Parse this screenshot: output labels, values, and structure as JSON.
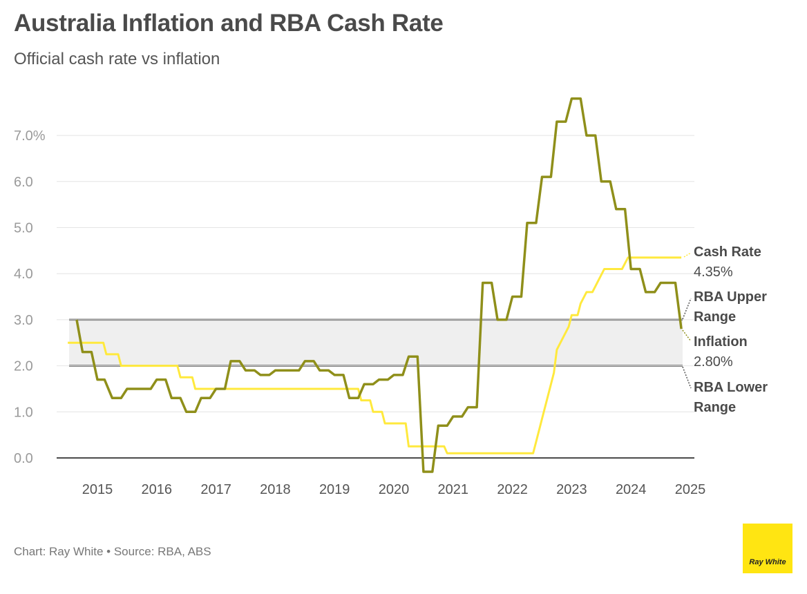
{
  "title": "Australia Inflation and RBA Cash Rate",
  "subtitle": "Official cash rate vs inflation",
  "footer": "Chart: Ray White • Source: RBA, ABS",
  "logo_text": "Ray White",
  "colors": {
    "inflation": "#8f8f1a",
    "cash_rate": "#ffe93d",
    "band": "#efefef",
    "band_line": "#555555",
    "logo": "#ffe512"
  },
  "chart_data": {
    "type": "line",
    "title": "Australia Inflation and RBA Cash Rate",
    "subtitle": "Official cash rate vs inflation",
    "xlim": [
      2014.5,
      2025
    ],
    "ylim": [
      0,
      7.8
    ],
    "y_ticks": [
      {
        "value": 0,
        "label": "0.0"
      },
      {
        "value": 1,
        "label": "1.0"
      },
      {
        "value": 2,
        "label": "2.0"
      },
      {
        "value": 3,
        "label": "3.0"
      },
      {
        "value": 4,
        "label": "4.0"
      },
      {
        "value": 5,
        "label": "5.0"
      },
      {
        "value": 6,
        "label": "6.0"
      },
      {
        "value": 7,
        "label": "7.0%"
      }
    ],
    "x_ticks": [
      "2015",
      "2016",
      "2017",
      "2018",
      "2019",
      "2020",
      "2021",
      "2022",
      "2023",
      "2024",
      "2025"
    ],
    "grid": true,
    "band": {
      "lower": 2.0,
      "upper": 3.0
    },
    "series": [
      {
        "name": "Cash Rate",
        "color_key": "cash_rate",
        "points": [
          [
            2014.5,
            2.5
          ],
          [
            2015.1,
            2.5
          ],
          [
            2015.15,
            2.25
          ],
          [
            2015.35,
            2.25
          ],
          [
            2015.4,
            2.0
          ],
          [
            2016.35,
            2.0
          ],
          [
            2016.4,
            1.75
          ],
          [
            2016.6,
            1.75
          ],
          [
            2016.65,
            1.5
          ],
          [
            2019.4,
            1.5
          ],
          [
            2019.45,
            1.25
          ],
          [
            2019.6,
            1.25
          ],
          [
            2019.65,
            1.0
          ],
          [
            2019.8,
            1.0
          ],
          [
            2019.85,
            0.75
          ],
          [
            2020.2,
            0.75
          ],
          [
            2020.25,
            0.25
          ],
          [
            2020.85,
            0.25
          ],
          [
            2020.9,
            0.1
          ],
          [
            2022.35,
            0.1
          ],
          [
            2022.4,
            0.35
          ],
          [
            2022.5,
            0.85
          ],
          [
            2022.6,
            1.35
          ],
          [
            2022.7,
            1.85
          ],
          [
            2022.75,
            2.35
          ],
          [
            2022.85,
            2.6
          ],
          [
            2022.95,
            2.85
          ],
          [
            2023.0,
            3.1
          ],
          [
            2023.1,
            3.1
          ],
          [
            2023.15,
            3.35
          ],
          [
            2023.25,
            3.6
          ],
          [
            2023.35,
            3.6
          ],
          [
            2023.45,
            3.85
          ],
          [
            2023.55,
            4.1
          ],
          [
            2023.85,
            4.1
          ],
          [
            2023.95,
            4.35
          ],
          [
            2024.85,
            4.35
          ]
        ]
      },
      {
        "name": "Inflation",
        "color_key": "inflation",
        "points": [
          [
            2014.65,
            3.0
          ],
          [
            2014.75,
            2.3
          ],
          [
            2014.9,
            2.3
          ],
          [
            2015.0,
            1.7
          ],
          [
            2015.12,
            1.7
          ],
          [
            2015.25,
            1.3
          ],
          [
            2015.4,
            1.3
          ],
          [
            2015.5,
            1.5
          ],
          [
            2015.9,
            1.5
          ],
          [
            2016.0,
            1.7
          ],
          [
            2016.15,
            1.7
          ],
          [
            2016.25,
            1.3
          ],
          [
            2016.4,
            1.3
          ],
          [
            2016.5,
            1.0
          ],
          [
            2016.65,
            1.0
          ],
          [
            2016.75,
            1.3
          ],
          [
            2016.9,
            1.3
          ],
          [
            2017.0,
            1.5
          ],
          [
            2017.15,
            1.5
          ],
          [
            2017.25,
            2.1
          ],
          [
            2017.4,
            2.1
          ],
          [
            2017.5,
            1.9
          ],
          [
            2017.65,
            1.9
          ],
          [
            2017.75,
            1.8
          ],
          [
            2017.9,
            1.8
          ],
          [
            2018.0,
            1.9
          ],
          [
            2018.4,
            1.9
          ],
          [
            2018.5,
            2.1
          ],
          [
            2018.65,
            2.1
          ],
          [
            2018.75,
            1.9
          ],
          [
            2018.9,
            1.9
          ],
          [
            2019.0,
            1.8
          ],
          [
            2019.15,
            1.8
          ],
          [
            2019.25,
            1.3
          ],
          [
            2019.4,
            1.3
          ],
          [
            2019.5,
            1.6
          ],
          [
            2019.65,
            1.6
          ],
          [
            2019.75,
            1.7
          ],
          [
            2019.9,
            1.7
          ],
          [
            2020.0,
            1.8
          ],
          [
            2020.15,
            1.8
          ],
          [
            2020.25,
            2.2
          ],
          [
            2020.4,
            2.2
          ],
          [
            2020.5,
            -0.3
          ],
          [
            2020.65,
            -0.3
          ],
          [
            2020.75,
            0.7
          ],
          [
            2020.9,
            0.7
          ],
          [
            2021.0,
            0.9
          ],
          [
            2021.15,
            0.9
          ],
          [
            2021.25,
            1.1
          ],
          [
            2021.4,
            1.1
          ],
          [
            2021.5,
            3.8
          ],
          [
            2021.65,
            3.8
          ],
          [
            2021.75,
            3.0
          ],
          [
            2021.9,
            3.0
          ],
          [
            2022.0,
            3.5
          ],
          [
            2022.15,
            3.5
          ],
          [
            2022.25,
            5.1
          ],
          [
            2022.4,
            5.1
          ],
          [
            2022.5,
            6.1
          ],
          [
            2022.65,
            6.1
          ],
          [
            2022.75,
            7.3
          ],
          [
            2022.9,
            7.3
          ],
          [
            2023.0,
            7.8
          ],
          [
            2023.15,
            7.8
          ],
          [
            2023.25,
            7.0
          ],
          [
            2023.4,
            7.0
          ],
          [
            2023.5,
            6.0
          ],
          [
            2023.65,
            6.0
          ],
          [
            2023.75,
            5.4
          ],
          [
            2023.9,
            5.4
          ],
          [
            2024.0,
            4.1
          ],
          [
            2024.15,
            4.1
          ],
          [
            2024.25,
            3.6
          ],
          [
            2024.4,
            3.6
          ],
          [
            2024.5,
            3.8
          ],
          [
            2024.75,
            3.8
          ],
          [
            2024.85,
            2.8
          ]
        ]
      }
    ],
    "annotations": {
      "cash_rate": {
        "label": "Cash Rate",
        "value": "4.35%"
      },
      "upper": {
        "label_line1": "RBA Upper",
        "label_line2": "Range"
      },
      "inflation": {
        "label": "Inflation",
        "value": "2.80%"
      },
      "lower": {
        "label_line1": "RBA Lower",
        "label_line2": "Range"
      }
    }
  }
}
